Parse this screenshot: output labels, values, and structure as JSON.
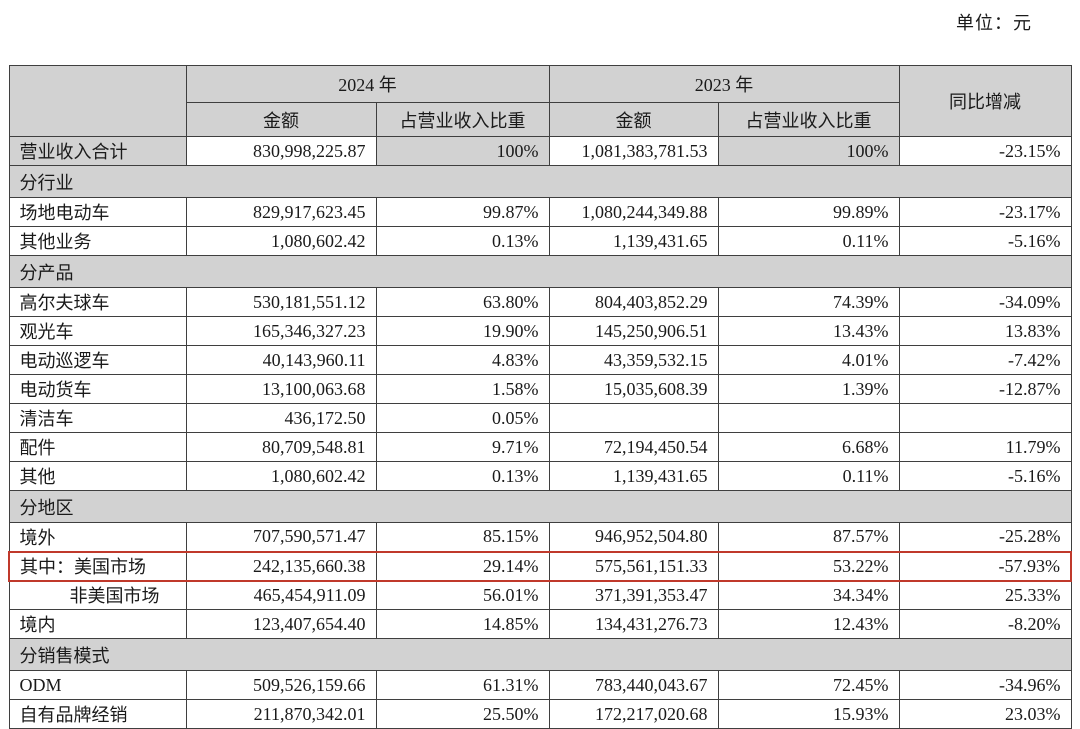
{
  "page": {
    "unit_label": "单位：元"
  },
  "colors": {
    "header_shade": "#d2d2d2",
    "grid_line": "#3f3f3f",
    "highlight_red": "#c0392b"
  },
  "table": {
    "header": {
      "year_2024": "2024 年",
      "year_2023": "2023 年",
      "yoy": "同比增减",
      "amount": "金额",
      "ratio": "占营业收入比重"
    },
    "rows": [
      {
        "type": "data",
        "label": "营业收入合计",
        "shaded": true,
        "a2024": "830,998,225.87",
        "r2024": "100%",
        "a2023": "1,081,383,781.53",
        "r2023": "100%",
        "yoy": "-23.15%"
      },
      {
        "type": "section",
        "label": "分行业"
      },
      {
        "type": "data",
        "label": "场地电动车",
        "a2024": "829,917,623.45",
        "r2024": "99.87%",
        "a2023": "1,080,244,349.88",
        "r2023": "99.89%",
        "yoy": "-23.17%"
      },
      {
        "type": "data",
        "label": "其他业务",
        "a2024": "1,080,602.42",
        "r2024": "0.13%",
        "a2023": "1,139,431.65",
        "r2023": "0.11%",
        "yoy": "-5.16%"
      },
      {
        "type": "section",
        "label": "分产品"
      },
      {
        "type": "data",
        "label": "高尔夫球车",
        "a2024": "530,181,551.12",
        "r2024": "63.80%",
        "a2023": "804,403,852.29",
        "r2023": "74.39%",
        "yoy": "-34.09%"
      },
      {
        "type": "data",
        "label": "观光车",
        "a2024": "165,346,327.23",
        "r2024": "19.90%",
        "a2023": "145,250,906.51",
        "r2023": "13.43%",
        "yoy": "13.83%"
      },
      {
        "type": "data",
        "label": "电动巡逻车",
        "a2024": "40,143,960.11",
        "r2024": "4.83%",
        "a2023": "43,359,532.15",
        "r2023": "4.01%",
        "yoy": "-7.42%"
      },
      {
        "type": "data",
        "label": "电动货车",
        "a2024": "13,100,063.68",
        "r2024": "1.58%",
        "a2023": "15,035,608.39",
        "r2023": "1.39%",
        "yoy": "-12.87%"
      },
      {
        "type": "data",
        "label": "清洁车",
        "a2024": "436,172.50",
        "r2024": "0.05%",
        "a2023": "",
        "r2023": "",
        "yoy": ""
      },
      {
        "type": "data",
        "label": "配件",
        "a2024": "80,709,548.81",
        "r2024": "9.71%",
        "a2023": "72,194,450.54",
        "r2023": "6.68%",
        "yoy": "11.79%"
      },
      {
        "type": "data",
        "label": "其他",
        "a2024": "1,080,602.42",
        "r2024": "0.13%",
        "a2023": "1,139,431.65",
        "r2023": "0.11%",
        "yoy": "-5.16%"
      },
      {
        "type": "section",
        "label": "分地区"
      },
      {
        "type": "data",
        "label": "境外",
        "a2024": "707,590,571.47",
        "r2024": "85.15%",
        "a2023": "946,952,504.80",
        "r2023": "87.57%",
        "yoy": "-25.28%"
      },
      {
        "type": "data",
        "label": "其中：美国市场",
        "highlight": true,
        "a2024": "242,135,660.38",
        "r2024": "29.14%",
        "a2023": "575,561,151.33",
        "r2023": "53.22%",
        "yoy": "-57.93%"
      },
      {
        "type": "data",
        "label": "非美国市场",
        "indent": true,
        "a2024": "465,454,911.09",
        "r2024": "56.01%",
        "a2023": "371,391,353.47",
        "r2023": "34.34%",
        "yoy": "25.33%"
      },
      {
        "type": "data",
        "label": "境内",
        "a2024": "123,407,654.40",
        "r2024": "14.85%",
        "a2023": "134,431,276.73",
        "r2023": "12.43%",
        "yoy": "-8.20%"
      },
      {
        "type": "section",
        "label": "分销售模式"
      },
      {
        "type": "data",
        "label": "ODM",
        "a2024": "509,526,159.66",
        "r2024": "61.31%",
        "a2023": "783,440,043.67",
        "r2023": "72.45%",
        "yoy": "-34.96%"
      },
      {
        "type": "data",
        "label": "自有品牌经销",
        "a2024": "211,870,342.01",
        "r2024": "25.50%",
        "a2023": "172,217,020.68",
        "r2023": "15.93%",
        "yoy": "23.03%"
      }
    ]
  }
}
